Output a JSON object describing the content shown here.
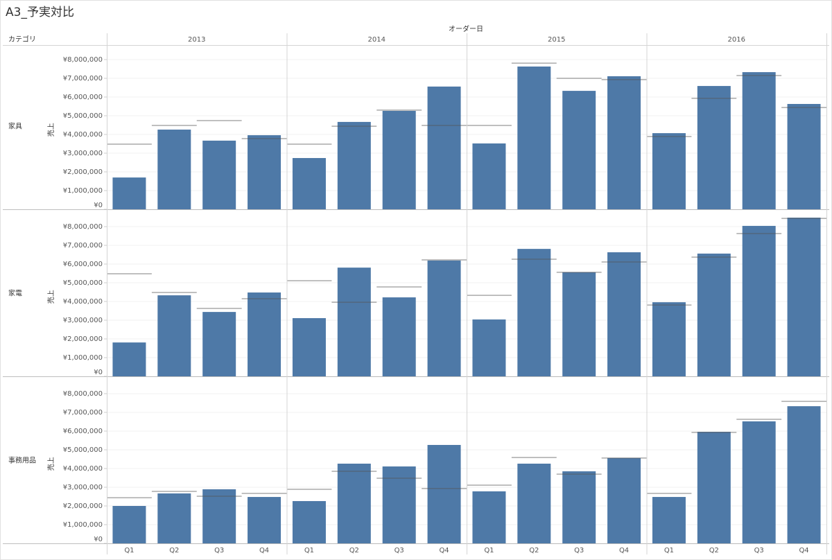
{
  "chart_data": {
    "type": "bar",
    "title": "A3_予実対比",
    "column_header": "オーダー日",
    "row_header": "カテゴリ",
    "y_label": "売上",
    "years": [
      "2013",
      "2014",
      "2015",
      "2016"
    ],
    "categories": [
      "Q1",
      "Q2",
      "Q3",
      "Q4"
    ],
    "color": "#4e79a7",
    "target_color": "#555555",
    "ylim": [
      0,
      8500000
    ],
    "yticks": [
      {
        "value": 0,
        "label": "¥0"
      },
      {
        "value": 1000000,
        "label": "¥1,000,000"
      },
      {
        "value": 2000000,
        "label": "¥2,000,000"
      },
      {
        "value": 3000000,
        "label": "¥3,000,000"
      },
      {
        "value": 4000000,
        "label": "¥4,000,000"
      },
      {
        "value": 5000000,
        "label": "¥5,000,000"
      },
      {
        "value": 6000000,
        "label": "¥6,000,000"
      },
      {
        "value": 7000000,
        "label": "¥7,000,000"
      },
      {
        "value": 8000000,
        "label": "¥8,000,000"
      }
    ],
    "grid": true,
    "panels": [
      {
        "name": "家具",
        "values": [
          1700000,
          4260000,
          3670000,
          3960000,
          2740000,
          4670000,
          5260000,
          6560000,
          3520000,
          7630000,
          6330000,
          7110000,
          4070000,
          6590000,
          7330000,
          5630000
        ],
        "targets": [
          3480000,
          4480000,
          4740000,
          3780000,
          3480000,
          4440000,
          5300000,
          4480000,
          4480000,
          7810000,
          7000000,
          6930000,
          3890000,
          5930000,
          7150000,
          5440000
        ]
      },
      {
        "name": "家電",
        "values": [
          1810000,
          4330000,
          3440000,
          4480000,
          3110000,
          5810000,
          4220000,
          6190000,
          3040000,
          6810000,
          5560000,
          6630000,
          3960000,
          6560000,
          8040000,
          8480000
        ],
        "targets": [
          5480000,
          4480000,
          3630000,
          4150000,
          5110000,
          3960000,
          4780000,
          6220000,
          4330000,
          6260000,
          5560000,
          6110000,
          3810000,
          6370000,
          7630000,
          8440000
        ]
      },
      {
        "name": "事務用品",
        "values": [
          2000000,
          2670000,
          2890000,
          2480000,
          2260000,
          4260000,
          4110000,
          5260000,
          2780000,
          4260000,
          3850000,
          4560000,
          2480000,
          5960000,
          6520000,
          7330000
        ],
        "targets": [
          2440000,
          2780000,
          2520000,
          2670000,
          2890000,
          3850000,
          3480000,
          2930000,
          3110000,
          4590000,
          3700000,
          4560000,
          2670000,
          5930000,
          6630000,
          7590000
        ]
      }
    ]
  }
}
